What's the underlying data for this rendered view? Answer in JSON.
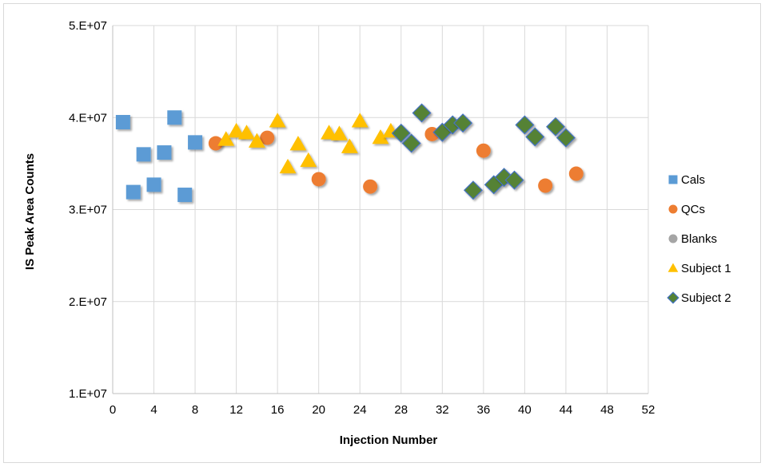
{
  "chart_data": {
    "type": "scatter",
    "title": "",
    "xlabel": "Injection Number",
    "ylabel": "IS Peak Area Counts",
    "xlim": [
      0,
      52
    ],
    "ylim": [
      10000000,
      50000000
    ],
    "xticks": [
      0,
      4,
      8,
      12,
      16,
      20,
      24,
      28,
      32,
      36,
      40,
      44,
      48,
      52
    ],
    "xtick_labels": [
      "0",
      "4",
      "8",
      "12",
      "16",
      "20",
      "24",
      "28",
      "32",
      "36",
      "40",
      "44",
      "48",
      "52"
    ],
    "yticks": [
      10000000,
      20000000,
      30000000,
      40000000,
      50000000
    ],
    "ytick_labels": [
      "1.E+07",
      "2.E+07",
      "3.E+07",
      "4.E+07",
      "5.E+07"
    ],
    "grid": true,
    "legend_position": "right",
    "series": [
      {
        "name": "Cals",
        "marker": "square",
        "color": "#5b9bd5",
        "points": [
          [
            1,
            39500000
          ],
          [
            2,
            31900000
          ],
          [
            3,
            36000000
          ],
          [
            4,
            32700000
          ],
          [
            5,
            36200000
          ],
          [
            6,
            40000000
          ],
          [
            7,
            31600000
          ],
          [
            8,
            37300000
          ]
        ]
      },
      {
        "name": "QCs",
        "marker": "circle",
        "color": "#ed7d31",
        "points": [
          [
            10,
            37200000
          ],
          [
            15,
            37800000
          ],
          [
            20,
            33300000
          ],
          [
            25,
            32500000
          ],
          [
            31,
            38200000
          ],
          [
            36,
            36400000
          ],
          [
            42,
            32600000
          ],
          [
            45,
            33900000
          ]
        ]
      },
      {
        "name": "Blanks",
        "marker": "circle",
        "color": "#a5a5a5",
        "points": []
      },
      {
        "name": "Subject 1",
        "marker": "triangle",
        "color": "#ffc000",
        "points": [
          [
            11,
            37600000
          ],
          [
            12,
            38500000
          ],
          [
            13,
            38300000
          ],
          [
            14,
            37400000
          ],
          [
            16,
            39600000
          ],
          [
            17,
            34600000
          ],
          [
            18,
            37100000
          ],
          [
            19,
            35300000
          ],
          [
            21,
            38300000
          ],
          [
            22,
            38200000
          ],
          [
            23,
            36800000
          ],
          [
            24,
            39600000
          ],
          [
            26,
            37800000
          ],
          [
            27,
            38500000
          ]
        ]
      },
      {
        "name": "Subject 2",
        "marker": "diamond",
        "color": "#548235",
        "stroke": "#4472c4",
        "points": [
          [
            28,
            38300000
          ],
          [
            29,
            37200000
          ],
          [
            30,
            40500000
          ],
          [
            32,
            38400000
          ],
          [
            33,
            39200000
          ],
          [
            34,
            39400000
          ],
          [
            35,
            32100000
          ],
          [
            37,
            32700000
          ],
          [
            38,
            33500000
          ],
          [
            39,
            33200000
          ],
          [
            40,
            39200000
          ],
          [
            41,
            37900000
          ],
          [
            43,
            39000000
          ],
          [
            44,
            37800000
          ]
        ]
      }
    ]
  }
}
